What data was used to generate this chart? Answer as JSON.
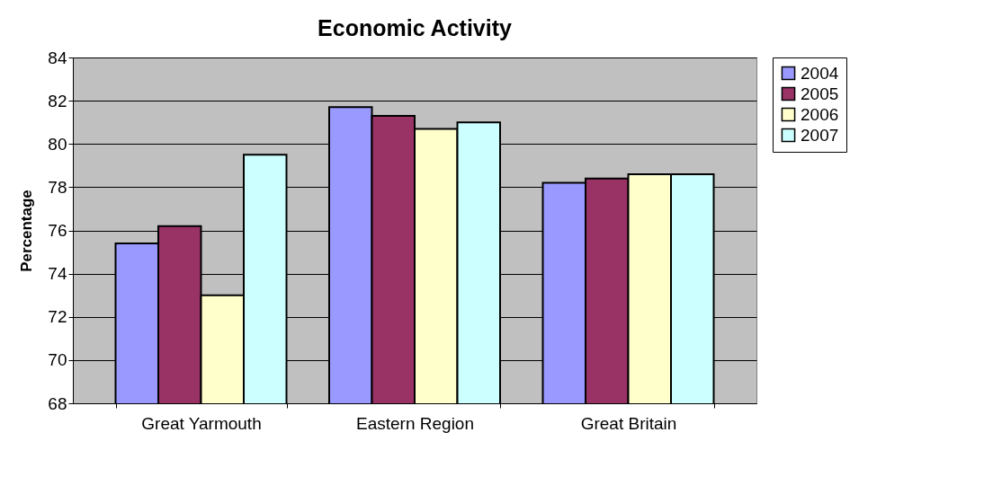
{
  "chart_data": {
    "type": "bar",
    "title": "Economic Activity",
    "ylabel": "Percentage",
    "categories": [
      "Great Yarmouth",
      "Eastern Region",
      "Great Britain"
    ],
    "series": [
      {
        "name": "2004",
        "color": "#9999ff",
        "values": [
          75.4,
          81.7,
          78.2
        ]
      },
      {
        "name": "2005",
        "color": "#993366",
        "values": [
          76.2,
          81.3,
          78.4
        ]
      },
      {
        "name": "2006",
        "color": "#ffffcc",
        "values": [
          73.0,
          80.7,
          78.6
        ]
      },
      {
        "name": "2007",
        "color": "#ccffff",
        "values": [
          79.5,
          81.0,
          78.6
        ]
      }
    ],
    "ylim": [
      68,
      84
    ],
    "yticks": [
      68,
      70,
      72,
      74,
      76,
      78,
      80,
      82,
      84
    ],
    "grid": "y",
    "legend": "right"
  }
}
